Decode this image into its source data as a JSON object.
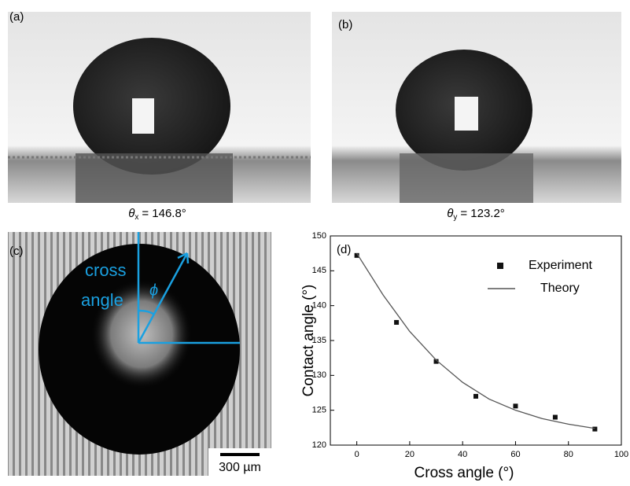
{
  "panels": {
    "a": {
      "label": "(a)",
      "caption": {
        "symbol": "θ",
        "subscript": "x",
        "value": "= 146.8°"
      }
    },
    "b": {
      "label": "(b)",
      "caption": {
        "symbol": "θ",
        "subscript": "y",
        "value": "= 123.2°"
      }
    },
    "c": {
      "label": "(c)",
      "text_line1": "cross",
      "text_line2": "angle",
      "angle_symbol": "ϕ",
      "scale_bar": "300 µm"
    }
  },
  "chart_data": {
    "type": "scatter",
    "panel_label": "(d)",
    "x_label": "Cross angle (°)",
    "y_label": "Contact angle (°)",
    "xlim": [
      -10,
      100
    ],
    "xticks": [
      0,
      20,
      40,
      60,
      80,
      100
    ],
    "ylim": [
      120,
      150
    ],
    "yticks": [
      120,
      125,
      130,
      135,
      140,
      145,
      150
    ],
    "legend": "upper right",
    "series": [
      {
        "name": "Experiment",
        "type": "scatter",
        "color": "#111111",
        "x": [
          0,
          15,
          30,
          45,
          60,
          75,
          90
        ],
        "values": [
          147.2,
          137.6,
          132,
          127,
          125.6,
          124,
          122.3
        ]
      },
      {
        "name": "Theory",
        "type": "line",
        "color": "#555555",
        "x": [
          0,
          10,
          20,
          30,
          40,
          50,
          60,
          70,
          80,
          90
        ],
        "values": [
          147.5,
          141.5,
          136.3,
          132.2,
          129,
          126.6,
          125,
          123.8,
          123,
          122.4
        ]
      }
    ]
  }
}
